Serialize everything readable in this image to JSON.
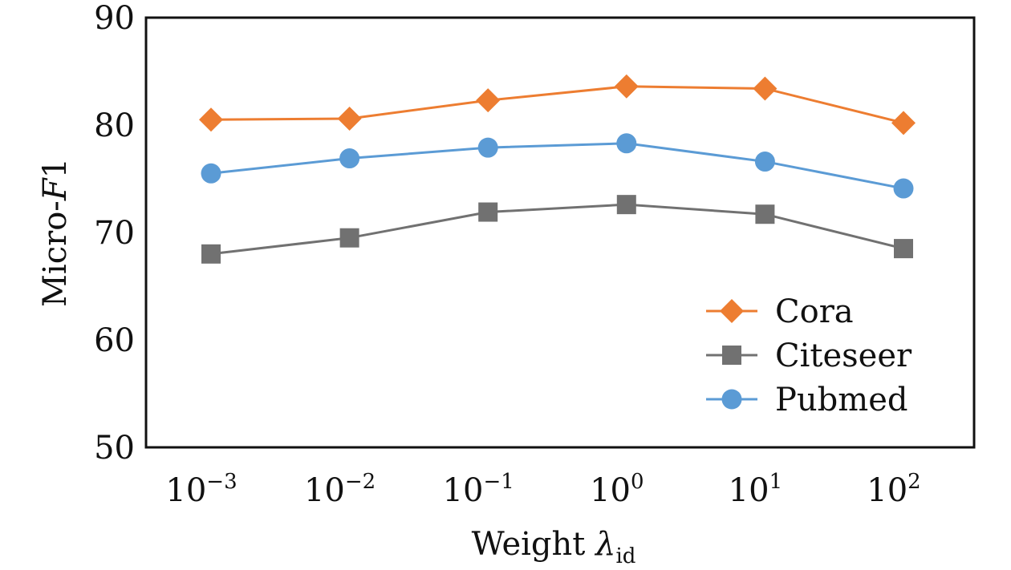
{
  "chart_data": {
    "type": "line",
    "title": "",
    "xlabel": "Weight λid",
    "xlabel_parts": {
      "text": "Weight ",
      "symbol": "λ",
      "subscript": "id"
    },
    "ylabel": "Micro-F1",
    "ylabel_parts": {
      "text": "Micro-",
      "italic": "F",
      "tail": "1"
    },
    "categories": [
      "10^-3",
      "10^-2",
      "10^-1",
      "10^0",
      "10^1",
      "10^2"
    ],
    "category_parts": [
      {
        "base": "10",
        "exp": "−3"
      },
      {
        "base": "10",
        "exp": "−2"
      },
      {
        "base": "10",
        "exp": "−1"
      },
      {
        "base": "10",
        "exp": "0"
      },
      {
        "base": "10",
        "exp": "1"
      },
      {
        "base": "10",
        "exp": "2"
      }
    ],
    "ylim": [
      50,
      90
    ],
    "yticks": [
      "50",
      "60",
      "70",
      "80",
      "90"
    ],
    "grid": false,
    "legend_position": "bottom-right",
    "series": [
      {
        "name": "Cora",
        "marker": "diamond",
        "color": "#ED7D31",
        "values": [
          80.5,
          80.6,
          82.3,
          83.6,
          83.4,
          80.2
        ]
      },
      {
        "name": "Citeseer",
        "marker": "square",
        "color": "#717171",
        "values": [
          68.0,
          69.5,
          71.9,
          72.6,
          71.7,
          68.5
        ]
      },
      {
        "name": "Pubmed",
        "marker": "circle",
        "color": "#5B9BD5",
        "values": [
          75.5,
          76.9,
          77.9,
          78.3,
          76.6,
          74.1
        ]
      }
    ]
  }
}
